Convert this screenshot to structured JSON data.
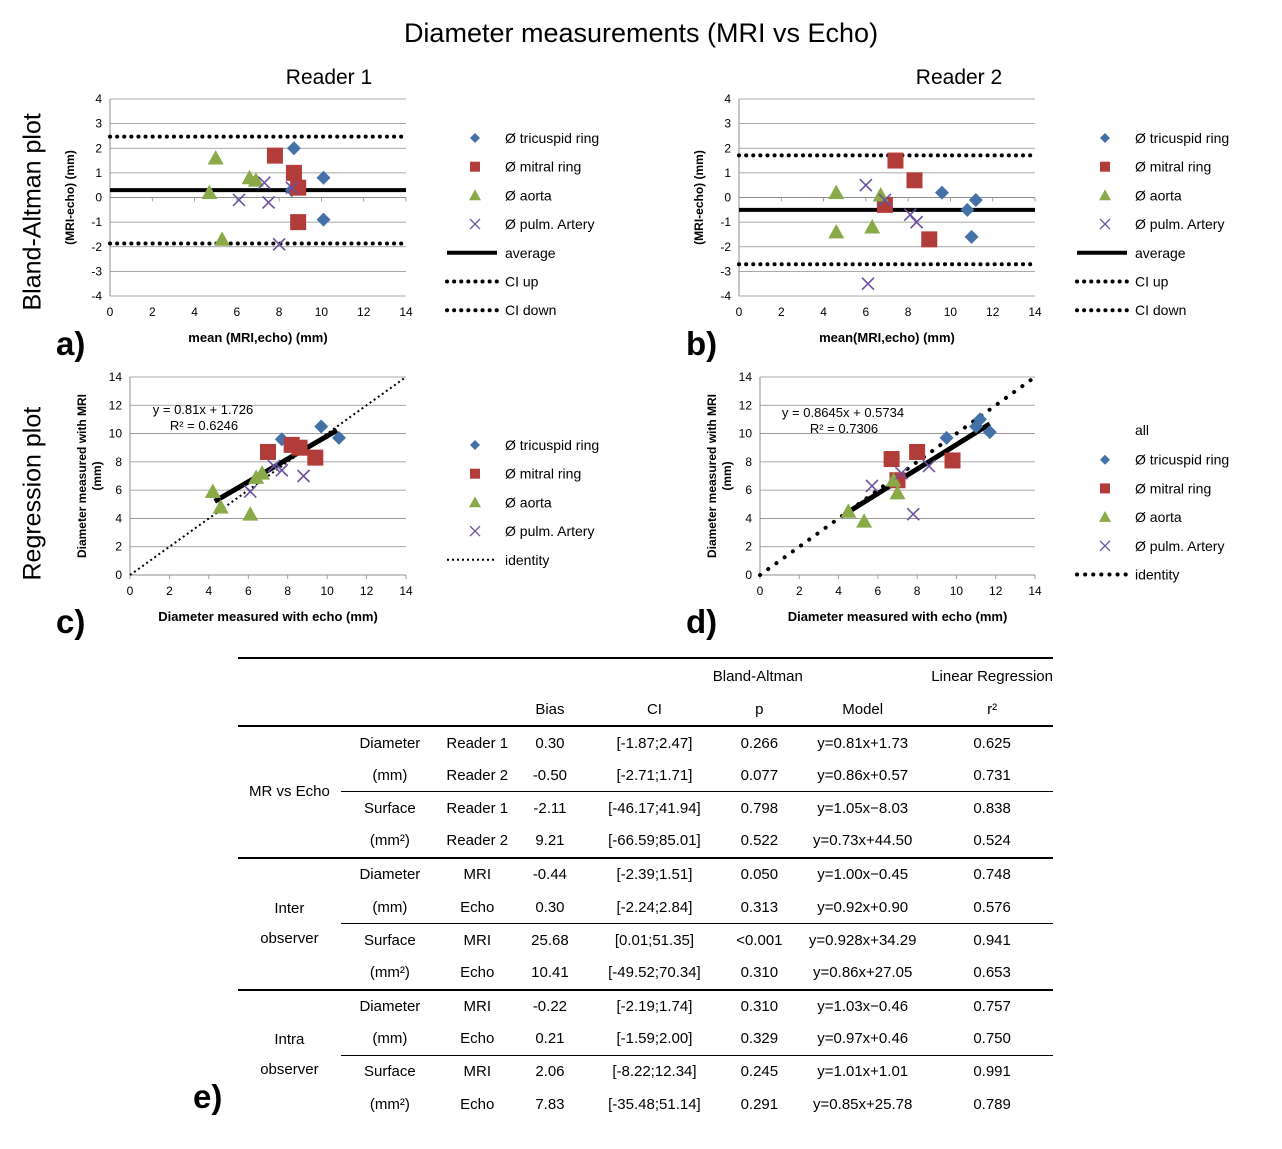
{
  "title": "Diameter measurements (MRI vs Echo)",
  "side_labels": {
    "ba": "Bland-Altman plot",
    "reg": "Regression plot"
  },
  "panel_labels": {
    "a": "a)",
    "b": "b)",
    "c": "c)",
    "d": "d)",
    "e": "e)"
  },
  "reader_titles": {
    "r1": "Reader 1",
    "r2": "Reader 2"
  },
  "colors": {
    "tricuspid": "#4472a8",
    "mitral": "#b23c3a",
    "aorta": "#8aaa48",
    "pulm": "#6b52a0",
    "grid": "#8c8c8c"
  },
  "chart_data": [
    {
      "id": "a",
      "type": "scatter",
      "xlabel": "mean (MRI,echo) (mm)",
      "ylabel": "(MRI-echo) (mm)",
      "xlim": [
        0,
        14
      ],
      "ylim": [
        -4,
        4
      ],
      "xticks": [
        "0",
        "2",
        "4",
        "6",
        "8",
        "10",
        "12",
        "14"
      ],
      "yticks": [
        "-4",
        "-3",
        "-2",
        "-1",
        "0",
        "1",
        "2",
        "3",
        "4"
      ],
      "grid": true,
      "series": [
        {
          "name": "Ø tricuspid ring",
          "marker": "diamond",
          "points": [
            [
              8.7,
              2.0
            ],
            [
              8.6,
              0.3
            ],
            [
              10.1,
              0.8
            ],
            [
              10.1,
              -0.9
            ]
          ]
        },
        {
          "name": "Ø mitral ring",
          "marker": "square",
          "points": [
            [
              7.8,
              1.7
            ],
            [
              8.7,
              1.0
            ],
            [
              8.9,
              0.4
            ],
            [
              8.9,
              -1.0
            ]
          ]
        },
        {
          "name": "Ø aorta",
          "marker": "triangle",
          "points": [
            [
              5.0,
              1.6
            ],
            [
              4.7,
              0.2
            ],
            [
              6.6,
              0.8
            ],
            [
              6.9,
              0.7
            ],
            [
              5.3,
              -1.7
            ]
          ]
        },
        {
          "name": "Ø pulm. Artery",
          "marker": "x",
          "points": [
            [
              6.1,
              -0.1
            ],
            [
              7.3,
              0.6
            ],
            [
              7.5,
              -0.2
            ],
            [
              8.0,
              -1.9
            ],
            [
              8.6,
              0.4
            ]
          ]
        }
      ],
      "lines": [
        {
          "name": "average",
          "style": "solid",
          "y": 0.3
        },
        {
          "name": "CI up",
          "style": "dotted",
          "y": 2.47
        },
        {
          "name": "CI down",
          "style": "dotted",
          "y": -1.87
        }
      ]
    },
    {
      "id": "b",
      "type": "scatter",
      "xlabel": "mean(MRI,echo) (mm)",
      "ylabel": "(MRI-echo) (mm)",
      "xlim": [
        0,
        14
      ],
      "ylim": [
        -4,
        4
      ],
      "xticks": [
        "0",
        "2",
        "4",
        "6",
        "8",
        "10",
        "12",
        "14"
      ],
      "yticks": [
        "-4",
        "-3",
        "-2",
        "-1",
        "0",
        "1",
        "2",
        "3",
        "4"
      ],
      "grid": true,
      "series": [
        {
          "name": "Ø tricuspid ring",
          "marker": "diamond",
          "points": [
            [
              9.6,
              0.2
            ],
            [
              10.8,
              -0.5
            ],
            [
              11.2,
              -0.1
            ],
            [
              11.0,
              -1.6
            ]
          ]
        },
        {
          "name": "Ø mitral ring",
          "marker": "square",
          "points": [
            [
              7.4,
              1.5
            ],
            [
              8.3,
              0.7
            ],
            [
              9.0,
              -1.7
            ],
            [
              6.9,
              -0.3
            ]
          ]
        },
        {
          "name": "Ø aorta",
          "marker": "triangle",
          "points": [
            [
              4.6,
              0.2
            ],
            [
              6.7,
              0.1
            ],
            [
              4.6,
              -1.4
            ],
            [
              6.3,
              -1.2
            ]
          ]
        },
        {
          "name": "Ø pulm. Artery",
          "marker": "x",
          "points": [
            [
              6.0,
              0.5
            ],
            [
              6.9,
              -0.1
            ],
            [
              8.1,
              -0.7
            ],
            [
              8.4,
              -1.0
            ],
            [
              6.1,
              -3.5
            ]
          ]
        }
      ],
      "lines": [
        {
          "name": "average",
          "style": "solid",
          "y": -0.5
        },
        {
          "name": "CI up",
          "style": "dotted",
          "y": 1.71
        },
        {
          "name": "CI down",
          "style": "dotted",
          "y": -2.71
        }
      ]
    },
    {
      "id": "c",
      "type": "scatter",
      "xlabel": "Diameter measured with echo (mm)",
      "ylabel": "Diameter measured with MRI (mm)",
      "xlim": [
        0,
        14
      ],
      "ylim": [
        0,
        14
      ],
      "xticks": [
        "0",
        "2",
        "4",
        "6",
        "8",
        "10",
        "12",
        "14"
      ],
      "yticks": [
        "0",
        "2",
        "4",
        "6",
        "8",
        "10",
        "12",
        "14"
      ],
      "grid": true,
      "equation": "y = 0.81x + 1.726",
      "r2": "R² = 0.6246",
      "regression": {
        "slope": 0.81,
        "intercept": 1.726,
        "x_range": [
          4.3,
          10.5
        ]
      },
      "identity": true,
      "series": [
        {
          "name": "Ø tricuspid ring",
          "marker": "diamond",
          "points": [
            [
              7.7,
              9.6
            ],
            [
              9.7,
              10.5
            ],
            [
              10.6,
              9.7
            ]
          ]
        },
        {
          "name": "Ø mitral ring",
          "marker": "square",
          "points": [
            [
              7.0,
              8.7
            ],
            [
              8.2,
              9.2
            ],
            [
              8.6,
              9.0
            ],
            [
              9.4,
              8.3
            ]
          ]
        },
        {
          "name": "Ø aorta",
          "marker": "triangle",
          "points": [
            [
              4.2,
              5.9
            ],
            [
              4.6,
              4.8
            ],
            [
              6.1,
              4.3
            ],
            [
              6.4,
              6.9
            ],
            [
              6.7,
              7.2
            ]
          ]
        },
        {
          "name": "Ø pulm. Artery",
          "marker": "x",
          "points": [
            [
              6.1,
              5.9
            ],
            [
              7.3,
              7.7
            ],
            [
              7.7,
              7.4
            ],
            [
              8.8,
              7.0
            ]
          ]
        }
      ],
      "legend_extra": "identity"
    },
    {
      "id": "d",
      "type": "scatter",
      "xlabel": "Diameter measured with echo (mm)",
      "ylabel": "Diameter measured with MRI (mm)",
      "xlim": [
        0,
        14
      ],
      "ylim": [
        0,
        14
      ],
      "xticks": [
        "0",
        "2",
        "4",
        "6",
        "8",
        "10",
        "12",
        "14"
      ],
      "yticks": [
        "0",
        "2",
        "4",
        "6",
        "8",
        "10",
        "12",
        "14"
      ],
      "grid": true,
      "equation": "y = 0.8645x + 0.5734",
      "r2": "R² = 0.7306",
      "regression": {
        "slope": 0.8645,
        "intercept": 0.5734,
        "x_range": [
          4.3,
          11.7
        ]
      },
      "identity": true,
      "series": [
        {
          "name": "Ø tricuspid ring",
          "marker": "diamond",
          "points": [
            [
              9.5,
              9.7
            ],
            [
              11.0,
              10.5
            ],
            [
              11.2,
              11.0
            ],
            [
              11.7,
              10.1
            ]
          ]
        },
        {
          "name": "Ø mitral ring",
          "marker": "square",
          "points": [
            [
              6.7,
              8.2
            ],
            [
              8.0,
              8.7
            ],
            [
              9.8,
              8.1
            ],
            [
              7.0,
              6.7
            ]
          ]
        },
        {
          "name": "Ø aorta",
          "marker": "triangle",
          "points": [
            [
              4.5,
              4.5
            ],
            [
              5.3,
              3.8
            ],
            [
              6.8,
              6.7
            ],
            [
              7.0,
              5.8
            ]
          ]
        },
        {
          "name": "Ø pulm. Artery",
          "marker": "x",
          "points": [
            [
              5.7,
              6.3
            ],
            [
              7.8,
              4.3
            ],
            [
              8.6,
              7.7
            ],
            [
              7.2,
              7.2
            ]
          ]
        }
      ],
      "legend_top": "all",
      "legend_extra": "identity"
    }
  ],
  "table": {
    "group_headers": {
      "ba": "Bland-Altman",
      "lr": "Linear Regression"
    },
    "columns": {
      "bias": "Bias",
      "ci": "CI",
      "p": "p",
      "model": "Model",
      "r2": "r²"
    },
    "groups": [
      {
        "label1": "MR vs Echo",
        "label2": "",
        "sections": [
          {
            "m1": "Diameter",
            "m2": "(mm)",
            "rows": [
              {
                "sub": "Reader 1",
                "bias": "0.30",
                "ci": "[-1.87;2.47]",
                "p": "0.266",
                "model": "y=0.81x+1.73",
                "r2": "0.625"
              },
              {
                "sub": "Reader 2",
                "bias": "-0.50",
                "ci": "[-2.71;1.71]",
                "p": "0.077",
                "model": "y=0.86x+0.57",
                "r2": "0.731"
              }
            ]
          },
          {
            "m1": "Surface",
            "m2": "(mm²)",
            "rows": [
              {
                "sub": "Reader 1",
                "bias": "-2.11",
                "ci": "[-46.17;41.94]",
                "p": "0.798",
                "model": "y=1.05x−8.03",
                "r2": "0.838"
              },
              {
                "sub": "Reader 2",
                "bias": "9.21",
                "ci": "[-66.59;85.01]",
                "p": "0.522",
                "model": "y=0.73x+44.50",
                "r2": "0.524"
              }
            ]
          }
        ]
      },
      {
        "label1": "Inter",
        "label2": "observer",
        "sections": [
          {
            "m1": "Diameter",
            "m2": "(mm)",
            "rows": [
              {
                "sub": "MRI",
                "bias": "-0.44",
                "ci": "[-2.39;1.51]",
                "p": "0.050",
                "model": "y=1.00x−0.45",
                "r2": "0.748"
              },
              {
                "sub": "Echo",
                "bias": "0.30",
                "ci": "[-2.24;2.84]",
                "p": "0.313",
                "model": "y=0.92x+0.90",
                "r2": "0.576"
              }
            ]
          },
          {
            "m1": "Surface",
            "m2": "(mm²)",
            "rows": [
              {
                "sub": "MRI",
                "bias": "25.68",
                "ci": "[0.01;51.35]",
                "p": "<0.001",
                "model": "y=0.928x+34.29",
                "r2": "0.941"
              },
              {
                "sub": "Echo",
                "bias": "10.41",
                "ci": "[-49.52;70.34]",
                "p": "0.310",
                "model": "y=0.86x+27.05",
                "r2": "0.653"
              }
            ]
          }
        ]
      },
      {
        "label1": "Intra",
        "label2": "observer",
        "sections": [
          {
            "m1": "Diameter",
            "m2": "(mm)",
            "rows": [
              {
                "sub": "MRI",
                "bias": "-0.22",
                "ci": "[-2.19;1.74]",
                "p": "0.310",
                "model": "y=1.03x−0.46",
                "r2": "0.757"
              },
              {
                "sub": "Echo",
                "bias": "0.21",
                "ci": "[-1.59;2.00]",
                "p": "0.329",
                "model": "y=0.97x+0.46",
                "r2": "0.750"
              }
            ]
          },
          {
            "m1": "Surface",
            "m2": "(mm²)",
            "rows": [
              {
                "sub": "MRI",
                "bias": "2.06",
                "ci": "[-8.22;12.34]",
                "p": "0.245",
                "model": "y=1.01x+1.01",
                "r2": "0.991"
              },
              {
                "sub": "Echo",
                "bias": "7.83",
                "ci": "[-35.48;51.14]",
                "p": "0.291",
                "model": "y=0.85x+25.78",
                "r2": "0.789"
              }
            ]
          }
        ]
      }
    ]
  }
}
